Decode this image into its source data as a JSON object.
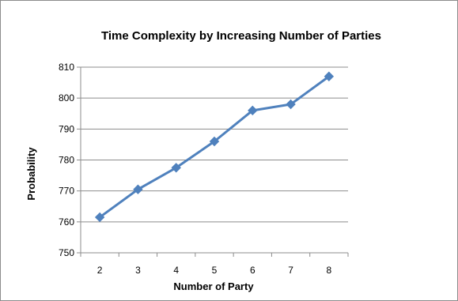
{
  "chart_data": {
    "type": "line",
    "title": "Time Complexity by Increasing Number of Parties",
    "xlabel": "Number of Party",
    "ylabel": "Probability",
    "x": [
      2,
      3,
      4,
      5,
      6,
      7,
      8
    ],
    "series": [
      {
        "values": [
          761.5,
          770.5,
          777.5,
          786,
          796,
          798,
          807
        ]
      }
    ],
    "ylim": [
      750,
      810
    ],
    "y_ticks": [
      750,
      760,
      770,
      780,
      790,
      800,
      810
    ],
    "grid": "horizontal",
    "legend": "none",
    "line_color": "#4F81BD"
  }
}
